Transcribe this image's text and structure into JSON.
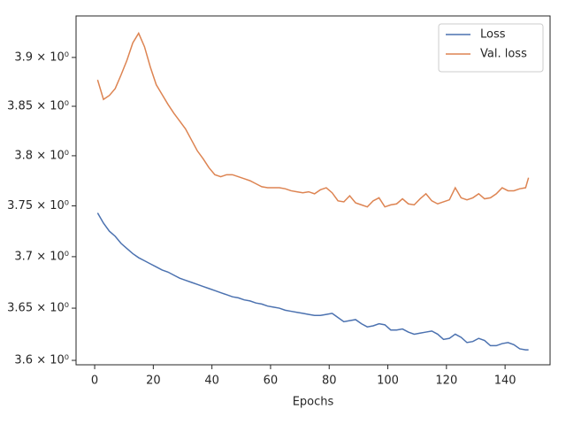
{
  "chart_data": {
    "type": "line",
    "xlabel": "Epochs",
    "log_y": true,
    "legend": "upper right",
    "x": [
      1,
      3,
      5,
      7,
      9,
      11,
      13,
      15,
      17,
      19,
      21,
      23,
      25,
      27,
      29,
      31,
      33,
      35,
      37,
      39,
      41,
      43,
      45,
      47,
      49,
      51,
      53,
      55,
      57,
      59,
      61,
      63,
      65,
      67,
      69,
      71,
      73,
      75,
      77,
      79,
      81,
      83,
      85,
      87,
      89,
      91,
      93,
      95,
      97,
      99,
      101,
      103,
      105,
      107,
      109,
      111,
      113,
      115,
      117,
      119,
      121,
      123,
      125,
      127,
      129,
      131,
      133,
      135,
      137,
      139,
      141,
      143,
      145,
      147,
      148
    ],
    "series": [
      {
        "name": "Loss",
        "color": "#4c72b0",
        "values": [
          3.743,
          3.733,
          3.725,
          3.72,
          3.713,
          3.708,
          3.703,
          3.699,
          3.696,
          3.693,
          3.69,
          3.687,
          3.685,
          3.682,
          3.679,
          3.677,
          3.675,
          3.673,
          3.671,
          3.669,
          3.667,
          3.665,
          3.663,
          3.661,
          3.66,
          3.658,
          3.657,
          3.655,
          3.654,
          3.652,
          3.651,
          3.65,
          3.648,
          3.647,
          3.646,
          3.645,
          3.644,
          3.643,
          3.643,
          3.644,
          3.645,
          3.641,
          3.637,
          3.638,
          3.639,
          3.635,
          3.632,
          3.633,
          3.635,
          3.634,
          3.629,
          3.629,
          3.63,
          3.627,
          3.625,
          3.626,
          3.627,
          3.628,
          3.625,
          3.62,
          3.621,
          3.625,
          3.622,
          3.617,
          3.618,
          3.621,
          3.619,
          3.614,
          3.614,
          3.616,
          3.617,
          3.615,
          3.611,
          3.61,
          3.61
        ]
      },
      {
        "name": "Val. loss",
        "color": "#dd8452",
        "values": [
          3.877,
          3.857,
          3.861,
          3.868,
          3.882,
          3.897,
          3.915,
          3.925,
          3.911,
          3.89,
          3.872,
          3.862,
          3.852,
          3.843,
          3.835,
          3.827,
          3.816,
          3.805,
          3.797,
          3.788,
          3.781,
          3.779,
          3.781,
          3.781,
          3.779,
          3.777,
          3.775,
          3.772,
          3.769,
          3.768,
          3.768,
          3.768,
          3.767,
          3.765,
          3.764,
          3.763,
          3.764,
          3.762,
          3.766,
          3.768,
          3.763,
          3.755,
          3.754,
          3.76,
          3.753,
          3.751,
          3.749,
          3.755,
          3.758,
          3.749,
          3.751,
          3.752,
          3.757,
          3.752,
          3.751,
          3.757,
          3.762,
          3.755,
          3.752,
          3.754,
          3.756,
          3.768,
          3.758,
          3.756,
          3.758,
          3.762,
          3.757,
          3.758,
          3.762,
          3.768,
          3.765,
          3.765,
          3.767,
          3.768,
          3.778
        ]
      }
    ],
    "xlim": [
      -6.35,
      155.35
    ],
    "xticks": [
      0,
      20,
      40,
      60,
      80,
      100,
      120,
      140
    ],
    "ylim": [
      3.5958,
      3.943
    ],
    "yticks": [
      {
        "value": 3.6,
        "label": "3.6 × 10⁰"
      },
      {
        "value": 3.65,
        "label": "3.65 × 10⁰"
      },
      {
        "value": 3.7,
        "label": "3.7 × 10⁰"
      },
      {
        "value": 3.75,
        "label": "3.75 × 10⁰"
      },
      {
        "value": 3.8,
        "label": "3.8 × 10⁰"
      },
      {
        "value": 3.85,
        "label": "3.85 × 10⁰"
      },
      {
        "value": 3.9,
        "label": "3.9 × 10⁰"
      }
    ]
  }
}
